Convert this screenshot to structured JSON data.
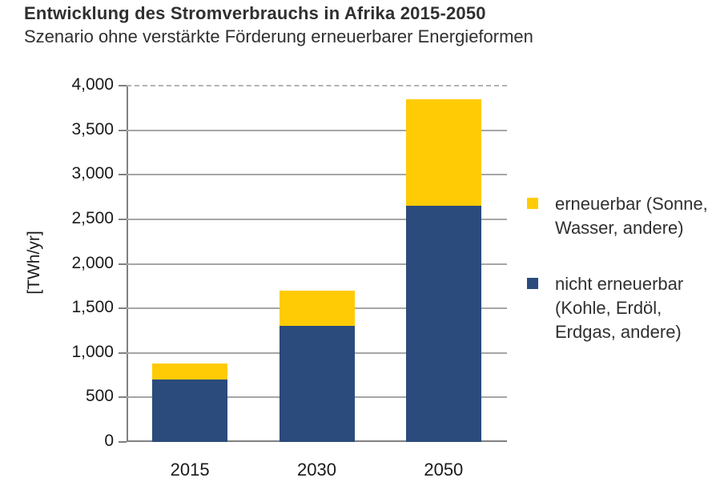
{
  "chart_data": {
    "type": "bar",
    "stacked": true,
    "title": "Entwicklung des Stromverbrauchs in Afrika 2015-2050",
    "subtitle": "Szenario ohne verstärkte Förderung erneuerbarer Energieformen",
    "ylabel": "[TWh/yr]",
    "xlabel": "",
    "categories": [
      "2015",
      "2030",
      "2050"
    ],
    "series": [
      {
        "name": "nicht erneuerbar (Kohle, Erdöl, Erdgas, andere)",
        "color": "#2A4B7C",
        "values": [
          700,
          1300,
          2650
        ]
      },
      {
        "name": "erneuerbar (Sonne, Wasser, andere)",
        "color": "#FFCB05",
        "values": [
          180,
          400,
          1200
        ]
      }
    ],
    "totals": [
      880,
      1700,
      3850
    ],
    "ylim": [
      0,
      4000
    ],
    "ytick_step": 500,
    "ytick_labels": [
      "0",
      "500",
      "1,000",
      "1,500",
      "2,000",
      "2,500",
      "3,000",
      "3,500",
      "4,000"
    ],
    "grid": true,
    "legend_position": "right",
    "legend": [
      {
        "label": "erneuerbar (Sonne,\nWasser, andere)",
        "color": "#FFCB05"
      },
      {
        "label": "nicht erneuerbar\n(Kohle, Erdöl,\nErdgas, andere)",
        "color": "#2A4B7C"
      }
    ],
    "colors": {
      "grid": "#A6A6A6",
      "axis": "#808080",
      "text": "#303030"
    }
  }
}
